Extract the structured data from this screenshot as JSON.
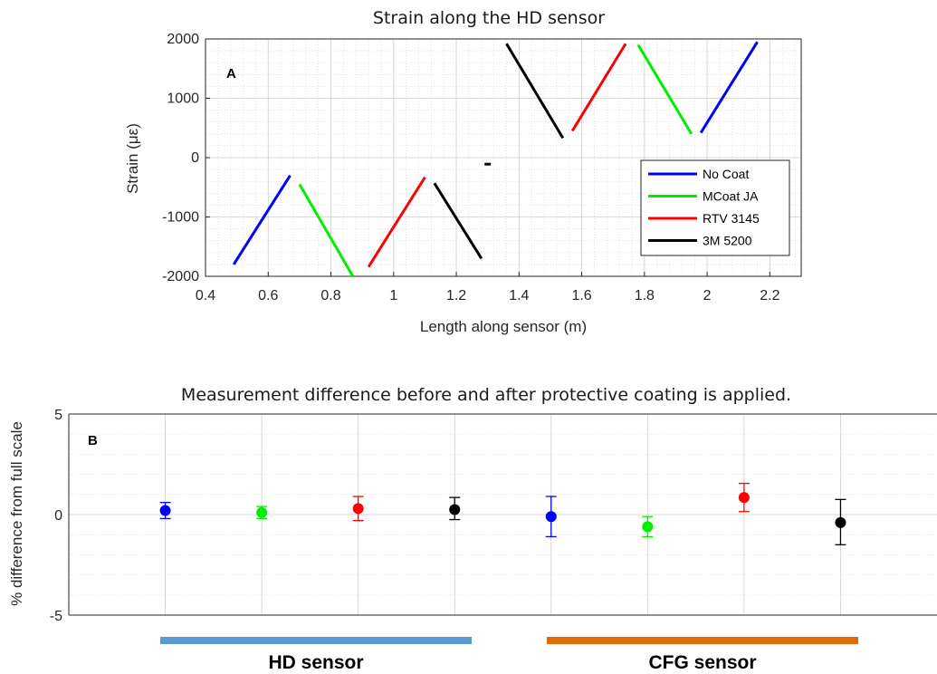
{
  "chart_data": [
    {
      "type": "line",
      "panel_label": "A",
      "title": "Strain along the HD sensor",
      "xlabel": "Length along sensor (m)",
      "ylabel": "Strain (με)",
      "xlim": [
        0.4,
        2.3
      ],
      "ylim": [
        -2000,
        2000
      ],
      "xticks": [
        "0.4",
        "0.6",
        "0.8",
        "1",
        "1.2",
        "1.4",
        "1.6",
        "1.8",
        "2",
        "2.2"
      ],
      "yticks": [
        "2000",
        "1000",
        "0",
        "-1000",
        "-2000"
      ],
      "grid": true,
      "legend_position": "bottom-right",
      "series": [
        {
          "name": "No Coat",
          "color": "#0000ff",
          "segments": [
            [
              [
                0.49,
                -1800
              ],
              [
                0.67,
                -300
              ]
            ],
            [
              [
                1.98,
                420
              ],
              [
                2.16,
                1950
              ]
            ]
          ]
        },
        {
          "name": "MCoat JA",
          "color": "#00ee00",
          "segments": [
            [
              [
                0.7,
                -450
              ],
              [
                0.87,
                -2000
              ]
            ],
            [
              [
                1.78,
                1900
              ],
              [
                1.95,
                400
              ]
            ]
          ]
        },
        {
          "name": "RTV 3145",
          "color": "#ff0000",
          "segments": [
            [
              [
                0.92,
                -1840
              ],
              [
                1.1,
                -330
              ]
            ],
            [
              [
                1.57,
                450
              ],
              [
                1.74,
                1920
              ]
            ]
          ]
        },
        {
          "name": "3M 5200",
          "color": "#000000",
          "segments": [
            [
              [
                1.13,
                -430
              ],
              [
                1.28,
                -1700
              ]
            ],
            [
              [
                1.36,
                1920
              ],
              [
                1.54,
                330
              ]
            ],
            [
              [
                1.29,
                -110
              ],
              [
                1.31,
                -110
              ]
            ]
          ]
        }
      ]
    },
    {
      "type": "scatter",
      "panel_label": "B",
      "title": "Measurement difference before and after protective coating is applied.",
      "xlabel": "",
      "ylabel": "% difference from full scale",
      "ylim": [
        -5,
        5
      ],
      "yticks": [
        "5",
        "0",
        "-5"
      ],
      "grid": true,
      "groups": [
        {
          "label": "HD sensor",
          "color": "#5b9bd5"
        },
        {
          "label": "CFG sensor",
          "color": "#e36c09"
        }
      ],
      "points": [
        {
          "group": "HD sensor",
          "coating": "No Coat",
          "color": "#0000ff",
          "value": 0.2,
          "lower": -0.2,
          "upper": 0.6
        },
        {
          "group": "HD sensor",
          "coating": "MCoat JA",
          "color": "#00ee00",
          "value": 0.1,
          "lower": -0.2,
          "upper": 0.4
        },
        {
          "group": "HD sensor",
          "coating": "RTV 3145",
          "color": "#ff0000",
          "value": 0.3,
          "lower": -0.3,
          "upper": 0.9
        },
        {
          "group": "HD sensor",
          "coating": "3M 5200",
          "color": "#000000",
          "value": 0.25,
          "lower": -0.25,
          "upper": 0.85
        },
        {
          "group": "CFG sensor",
          "coating": "No Coat",
          "color": "#0000ff",
          "value": -0.1,
          "lower": -1.1,
          "upper": 0.9
        },
        {
          "group": "CFG sensor",
          "coating": "MCoat JA",
          "color": "#00ee00",
          "value": -0.6,
          "lower": -1.1,
          "upper": -0.1
        },
        {
          "group": "CFG sensor",
          "coating": "RTV 3145",
          "color": "#ff0000",
          "value": 0.85,
          "lower": 0.15,
          "upper": 1.55
        },
        {
          "group": "CFG sensor",
          "coating": "3M 5200",
          "color": "#000000",
          "value": -0.4,
          "lower": -1.5,
          "upper": 0.75
        }
      ]
    }
  ]
}
